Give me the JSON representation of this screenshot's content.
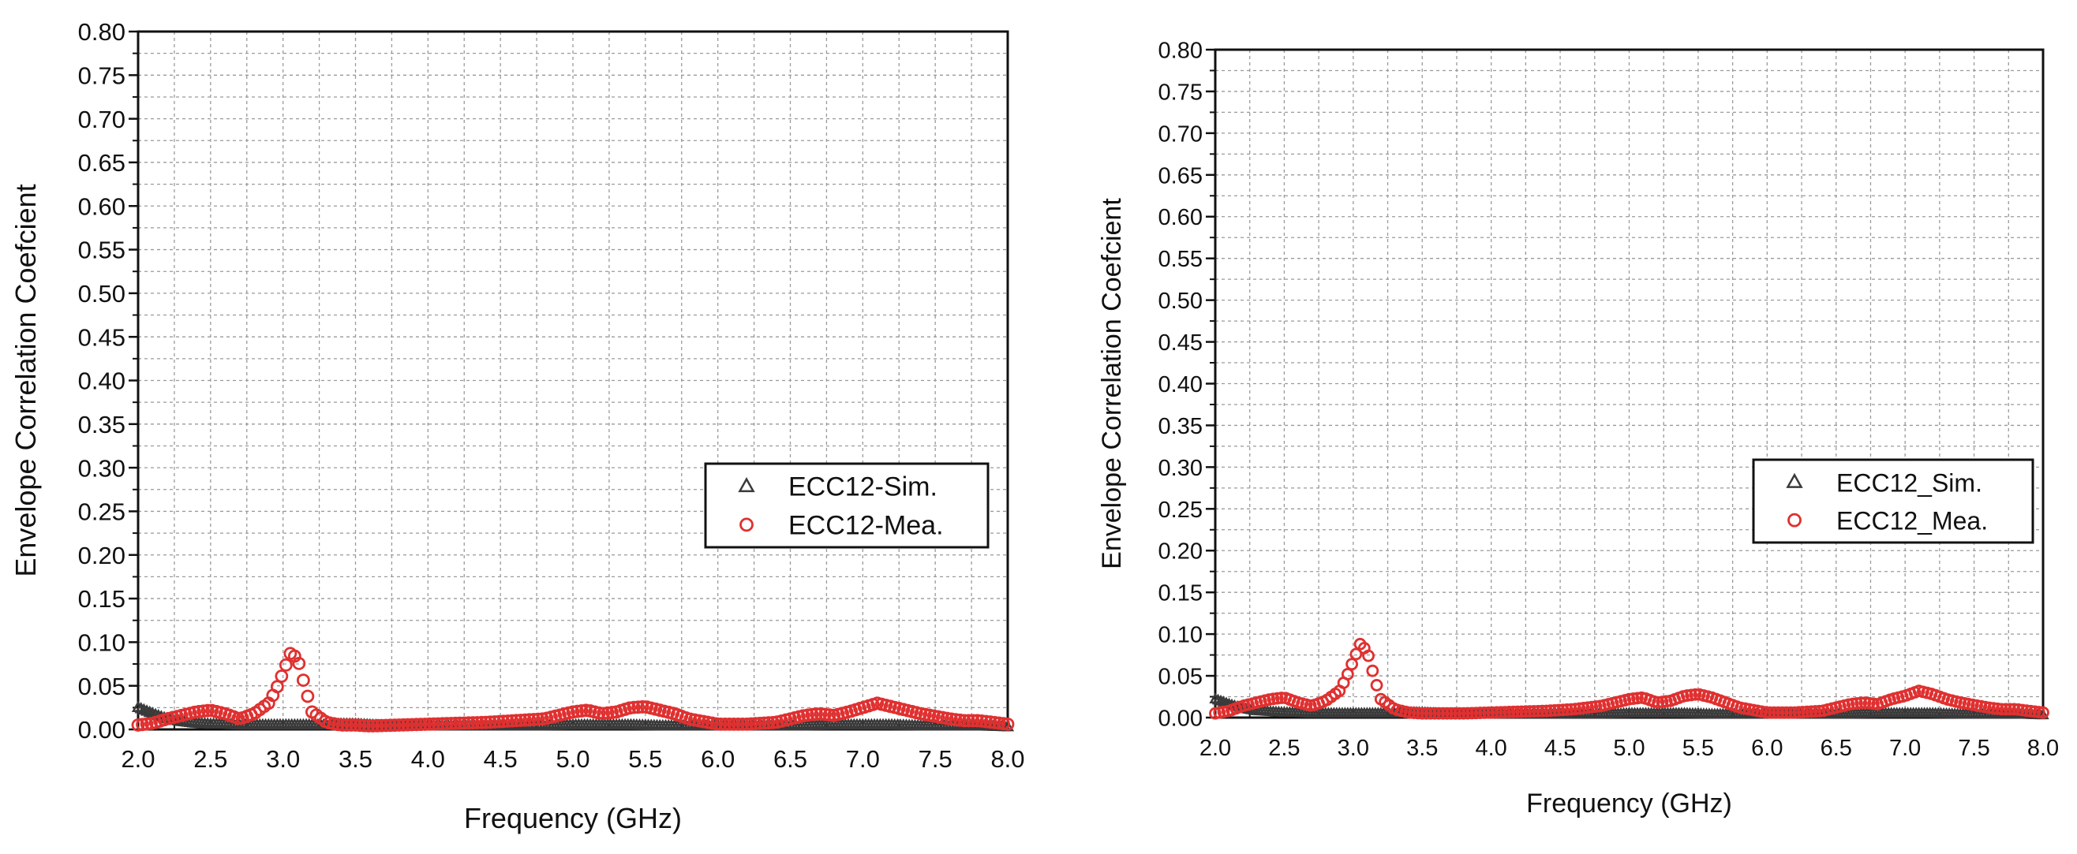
{
  "chart_data": [
    {
      "type": "scatter",
      "xlabel": "Frequency (GHz)",
      "ylabel": "Envelope Correlation Coefcient",
      "xlim": [
        2.0,
        8.0
      ],
      "ylim": [
        0.0,
        0.8
      ],
      "x_ticks": [
        "2.0",
        "2.5",
        "3.0",
        "3.5",
        "4.0",
        "4.5",
        "5.0",
        "5.5",
        "6.0",
        "6.5",
        "7.0",
        "7.5",
        "8.0"
      ],
      "y_ticks": [
        "0.00",
        "0.05",
        "0.10",
        "0.15",
        "0.20",
        "0.25",
        "0.30",
        "0.35",
        "0.40",
        "0.45",
        "0.50",
        "0.55",
        "0.60",
        "0.65",
        "0.70",
        "0.75",
        "0.80"
      ],
      "grid": true,
      "legend_position": "right-middle",
      "series": [
        {
          "name": "ECC12-Sim.",
          "marker": "triangle",
          "color": "#3a3a3a",
          "x": [
            2.0,
            2.1,
            2.2,
            2.3,
            2.4,
            2.5,
            2.6,
            2.7,
            2.8,
            2.9,
            3.0,
            3.1,
            3.2,
            3.3,
            3.4,
            3.5,
            3.6,
            3.7,
            3.8,
            3.9,
            4.0,
            4.2,
            4.4,
            4.6,
            4.8,
            5.0,
            5.2,
            5.4,
            5.6,
            5.8,
            6.0,
            6.2,
            6.4,
            6.6,
            6.8,
            7.0,
            7.2,
            7.4,
            7.6,
            7.8,
            8.0
          ],
          "y": [
            0.025,
            0.018,
            0.012,
            0.009,
            0.007,
            0.006,
            0.006,
            0.005,
            0.005,
            0.005,
            0.005,
            0.005,
            0.005,
            0.005,
            0.006,
            0.006,
            0.005,
            0.004,
            0.004,
            0.004,
            0.004,
            0.004,
            0.004,
            0.004,
            0.004,
            0.005,
            0.005,
            0.005,
            0.004,
            0.004,
            0.004,
            0.004,
            0.004,
            0.004,
            0.005,
            0.005,
            0.005,
            0.004,
            0.004,
            0.004,
            0.003
          ]
        },
        {
          "name": "ECC12-Mea.",
          "marker": "circle",
          "color": "#e03030",
          "x": [
            2.0,
            2.1,
            2.2,
            2.3,
            2.4,
            2.5,
            2.6,
            2.7,
            2.8,
            2.9,
            2.95,
            3.0,
            3.05,
            3.1,
            3.15,
            3.2,
            3.3,
            3.4,
            3.5,
            3.6,
            3.8,
            4.0,
            4.2,
            4.4,
            4.6,
            4.8,
            4.9,
            5.0,
            5.1,
            5.2,
            5.3,
            5.4,
            5.5,
            5.6,
            5.7,
            5.8,
            6.0,
            6.2,
            6.4,
            6.5,
            6.6,
            6.7,
            6.8,
            6.9,
            7.0,
            7.1,
            7.2,
            7.3,
            7.4,
            7.5,
            7.6,
            7.7,
            7.8,
            7.9,
            8.0
          ],
          "y": [
            0.005,
            0.007,
            0.012,
            0.016,
            0.02,
            0.022,
            0.018,
            0.012,
            0.018,
            0.03,
            0.045,
            0.065,
            0.087,
            0.082,
            0.05,
            0.02,
            0.008,
            0.005,
            0.005,
            0.004,
            0.005,
            0.006,
            0.007,
            0.008,
            0.01,
            0.012,
            0.016,
            0.02,
            0.022,
            0.018,
            0.02,
            0.025,
            0.026,
            0.022,
            0.018,
            0.012,
            0.006,
            0.006,
            0.008,
            0.012,
            0.016,
            0.018,
            0.016,
            0.02,
            0.025,
            0.03,
            0.026,
            0.022,
            0.018,
            0.015,
            0.012,
            0.01,
            0.01,
            0.008,
            0.006
          ]
        }
      ]
    },
    {
      "type": "scatter",
      "xlabel": "Frequency (GHz)",
      "ylabel": "Envelope Correlation Coefcient",
      "xlim": [
        2.0,
        8.0
      ],
      "ylim": [
        0.0,
        0.8
      ],
      "x_ticks": [
        "2.0",
        "2.5",
        "3.0",
        "3.5",
        "4.0",
        "4.5",
        "5.0",
        "5.5",
        "6.0",
        "6.5",
        "7.0",
        "7.5",
        "8.0"
      ],
      "y_ticks": [
        "0.00",
        "0.05",
        "0.10",
        "0.15",
        "0.20",
        "0.25",
        "0.30",
        "0.35",
        "0.40",
        "0.45",
        "0.50",
        "0.55",
        "0.60",
        "0.65",
        "0.70",
        "0.75",
        "0.80"
      ],
      "grid": true,
      "legend_position": "right-middle",
      "series": [
        {
          "name": "ECC12_Sim.",
          "marker": "triangle",
          "color": "#3a3a3a",
          "x": [
            2.0,
            2.1,
            2.2,
            2.3,
            2.4,
            2.5,
            2.6,
            2.7,
            2.8,
            2.9,
            3.0,
            3.1,
            3.2,
            3.3,
            3.4,
            3.5,
            3.6,
            3.7,
            3.8,
            3.9,
            4.0,
            4.2,
            4.4,
            4.6,
            4.8,
            5.0,
            5.2,
            5.4,
            5.6,
            5.8,
            6.0,
            6.2,
            6.4,
            6.6,
            6.8,
            7.0,
            7.2,
            7.4,
            7.6,
            7.8,
            8.0
          ],
          "y": [
            0.022,
            0.016,
            0.011,
            0.008,
            0.007,
            0.006,
            0.006,
            0.005,
            0.005,
            0.005,
            0.005,
            0.005,
            0.005,
            0.005,
            0.006,
            0.006,
            0.005,
            0.004,
            0.004,
            0.004,
            0.004,
            0.004,
            0.004,
            0.004,
            0.004,
            0.005,
            0.005,
            0.005,
            0.004,
            0.004,
            0.004,
            0.004,
            0.004,
            0.004,
            0.005,
            0.005,
            0.005,
            0.004,
            0.004,
            0.004,
            0.003
          ]
        },
        {
          "name": "ECC12_Mea.",
          "marker": "circle",
          "color": "#e03030",
          "x": [
            2.0,
            2.1,
            2.2,
            2.3,
            2.4,
            2.5,
            2.6,
            2.7,
            2.8,
            2.9,
            2.95,
            3.0,
            3.05,
            3.1,
            3.15,
            3.2,
            3.3,
            3.4,
            3.5,
            3.6,
            3.8,
            4.0,
            4.2,
            4.4,
            4.6,
            4.8,
            4.9,
            5.0,
            5.1,
            5.2,
            5.3,
            5.4,
            5.5,
            5.6,
            5.7,
            5.8,
            6.0,
            6.2,
            6.4,
            6.5,
            6.6,
            6.7,
            6.8,
            6.9,
            7.0,
            7.1,
            7.2,
            7.3,
            7.4,
            7.5,
            7.6,
            7.7,
            7.8,
            7.9,
            8.0
          ],
          "y": [
            0.005,
            0.008,
            0.014,
            0.018,
            0.022,
            0.024,
            0.018,
            0.014,
            0.02,
            0.032,
            0.048,
            0.068,
            0.088,
            0.08,
            0.05,
            0.022,
            0.01,
            0.006,
            0.005,
            0.005,
            0.005,
            0.006,
            0.007,
            0.008,
            0.01,
            0.014,
            0.018,
            0.022,
            0.024,
            0.018,
            0.02,
            0.026,
            0.028,
            0.024,
            0.018,
            0.012,
            0.006,
            0.006,
            0.008,
            0.012,
            0.016,
            0.018,
            0.016,
            0.022,
            0.026,
            0.032,
            0.028,
            0.022,
            0.018,
            0.015,
            0.012,
            0.01,
            0.01,
            0.008,
            0.006
          ]
        }
      ]
    }
  ]
}
